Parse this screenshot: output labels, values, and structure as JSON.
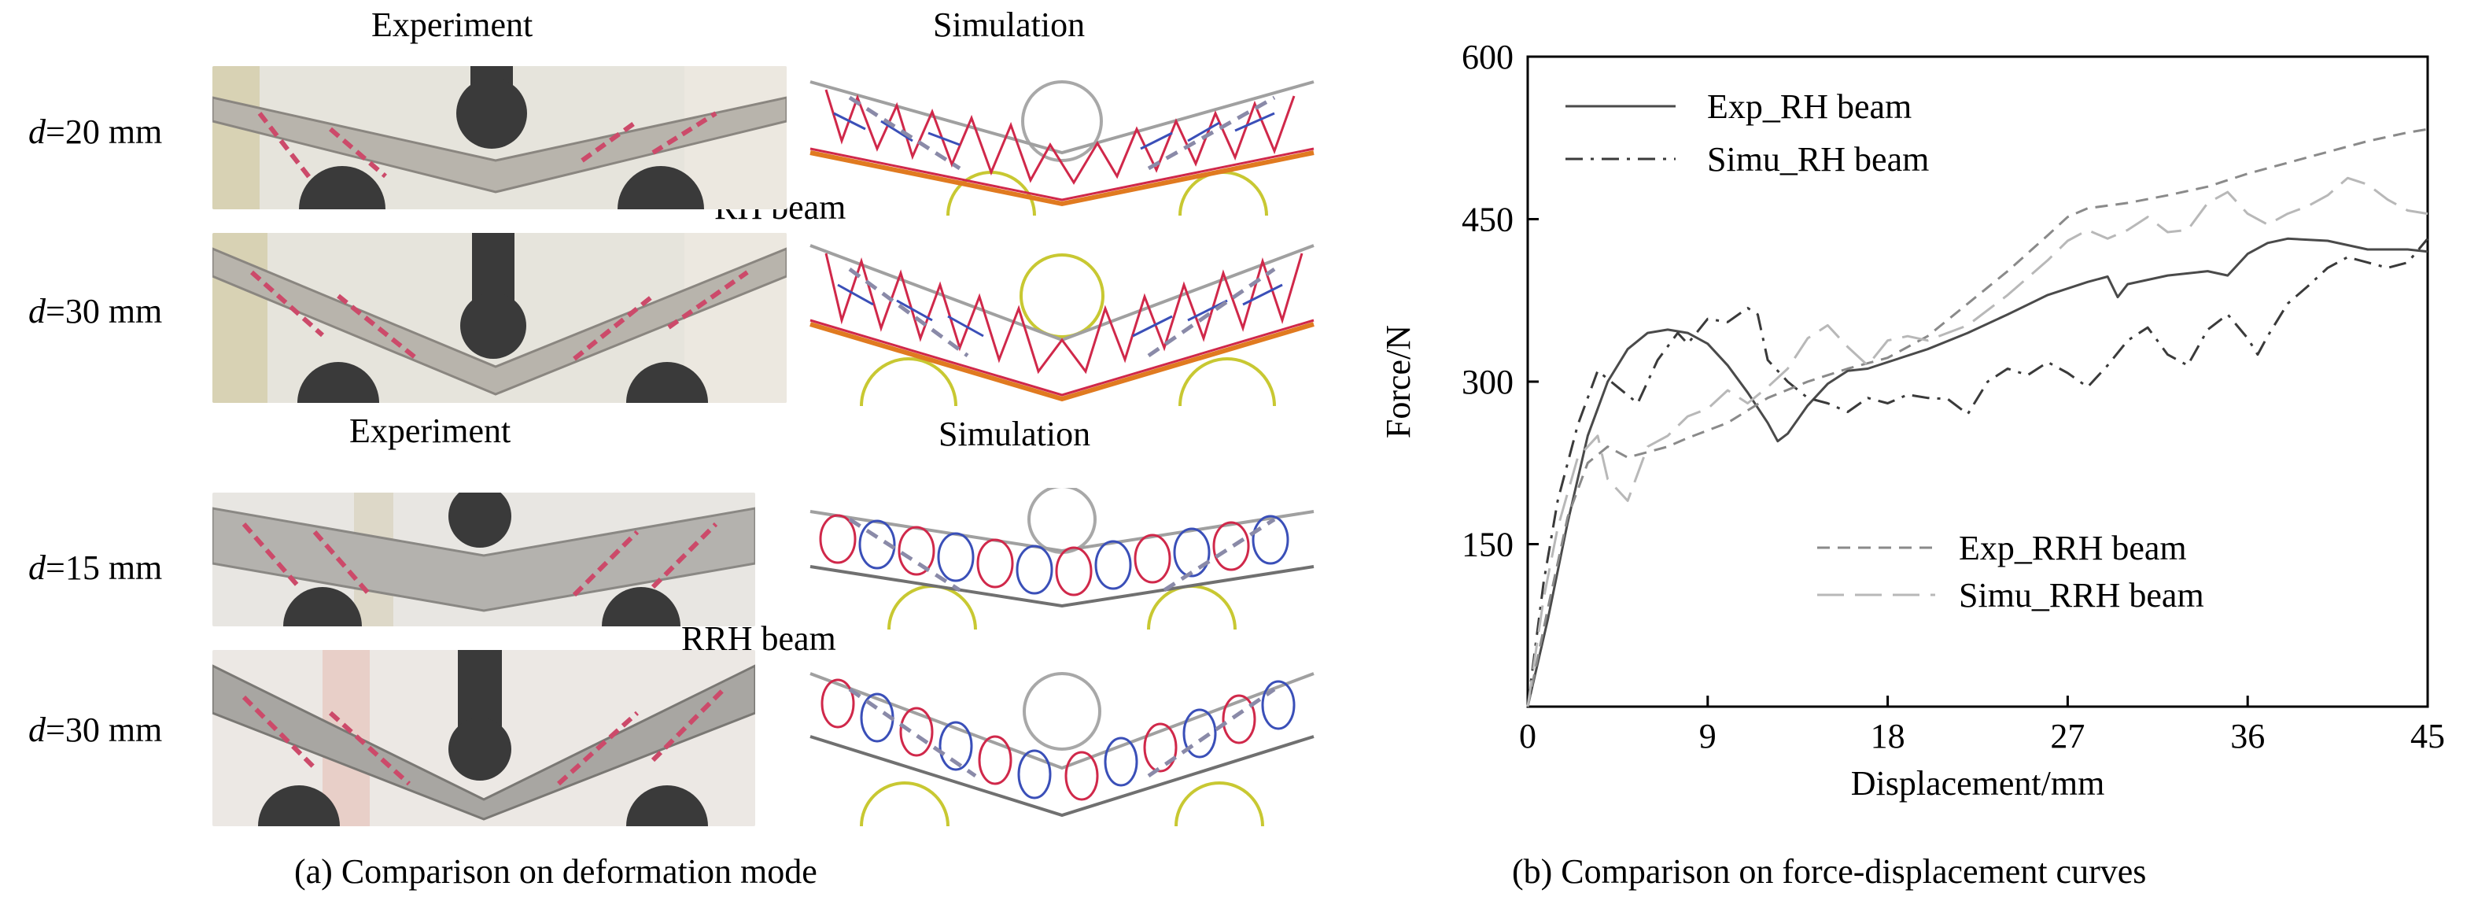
{
  "panel_a": {
    "experiment_label_1": "Experiment",
    "simulation_label_1": "Simulation",
    "experiment_label_2": "Experiment",
    "simulation_label_2": "Simulation",
    "rh_beam_label": "RH beam",
    "rrh_beam_label": "RRH beam",
    "rows": [
      {
        "d_symbol": "d",
        "d_value": "=20 mm"
      },
      {
        "d_symbol": "d",
        "d_value": "=30 mm"
      },
      {
        "d_symbol": "d",
        "d_value": "=15 mm"
      },
      {
        "d_symbol": "d",
        "d_value": "=30 mm"
      }
    ],
    "caption": "(a) Comparison on deformation mode"
  },
  "panel_b": {
    "caption": "(b) Comparison on force-displacement curves"
  },
  "colors": {
    "exp_rh": "#4a4a4a",
    "simu_rh": "#3a3a3a",
    "exp_rrh": "#8a8a8a",
    "simu_rrh": "#b8b8b8",
    "sim_red": "#d0284a",
    "sim_blue": "#3a4fb8",
    "sim_orange": "#e07a20",
    "sim_yellow": "#c8c832",
    "sim_grey": "#a0a0a0"
  },
  "chart_data": {
    "type": "line",
    "xlabel": "Displacement/mm",
    "ylabel": "Force/N",
    "xlim": [
      0,
      45
    ],
    "ylim": [
      0,
      600
    ],
    "xticks": [
      0,
      9,
      18,
      27,
      36,
      45
    ],
    "yticks": [
      150,
      300,
      450,
      600
    ],
    "grid": false,
    "legend_top": [
      "Exp_RH beam",
      "Simu_RH beam"
    ],
    "legend_bottom": [
      "Exp_RRH beam",
      "Simu_RRH beam"
    ],
    "series": [
      {
        "name": "Exp_RH beam",
        "style": "solid",
        "points": [
          [
            0,
            0
          ],
          [
            1,
            80
          ],
          [
            2,
            170
          ],
          [
            3,
            250
          ],
          [
            4,
            300
          ],
          [
            5,
            330
          ],
          [
            6,
            345
          ],
          [
            7,
            348
          ],
          [
            8,
            345
          ],
          [
            9,
            335
          ],
          [
            10,
            315
          ],
          [
            11,
            290
          ],
          [
            12,
            262
          ],
          [
            12.5,
            245
          ],
          [
            13,
            252
          ],
          [
            14,
            278
          ],
          [
            15,
            298
          ],
          [
            16,
            310
          ],
          [
            17,
            312
          ],
          [
            18,
            318
          ],
          [
            20,
            330
          ],
          [
            22,
            345
          ],
          [
            24,
            362
          ],
          [
            26,
            380
          ],
          [
            28,
            392
          ],
          [
            29,
            397
          ],
          [
            29.5,
            378
          ],
          [
            30,
            390
          ],
          [
            32,
            398
          ],
          [
            34,
            402
          ],
          [
            35,
            398
          ],
          [
            36,
            418
          ],
          [
            37,
            428
          ],
          [
            38,
            432
          ],
          [
            40,
            430
          ],
          [
            42,
            422
          ],
          [
            44,
            422
          ],
          [
            45,
            420
          ]
        ]
      },
      {
        "name": "Simu_RH beam",
        "style": "dashdot",
        "points": [
          [
            0,
            0
          ],
          [
            0.8,
            115
          ],
          [
            1.5,
            190
          ],
          [
            2.5,
            260
          ],
          [
            3.5,
            310
          ],
          [
            4.5,
            295
          ],
          [
            5.5,
            280
          ],
          [
            6.5,
            320
          ],
          [
            7.5,
            345
          ],
          [
            8,
            335
          ],
          [
            9,
            358
          ],
          [
            10,
            355
          ],
          [
            11,
            368
          ],
          [
            11.5,
            362
          ],
          [
            12,
            320
          ],
          [
            13,
            300
          ],
          [
            14,
            285
          ],
          [
            15,
            280
          ],
          [
            16,
            272
          ],
          [
            17,
            285
          ],
          [
            18,
            280
          ],
          [
            19,
            288
          ],
          [
            20,
            285
          ],
          [
            21,
            284
          ],
          [
            22,
            270
          ],
          [
            23,
            300
          ],
          [
            24,
            312
          ],
          [
            25,
            306
          ],
          [
            26,
            318
          ],
          [
            27,
            308
          ],
          [
            28,
            295
          ],
          [
            29,
            315
          ],
          [
            30,
            338
          ],
          [
            31,
            350
          ],
          [
            32,
            325
          ],
          [
            33,
            315
          ],
          [
            34,
            348
          ],
          [
            35,
            362
          ],
          [
            36,
            340
          ],
          [
            36.5,
            325
          ],
          [
            37,
            342
          ],
          [
            38,
            372
          ],
          [
            39,
            388
          ],
          [
            40,
            405
          ],
          [
            41,
            415
          ],
          [
            42,
            410
          ],
          [
            43,
            405
          ],
          [
            44,
            410
          ],
          [
            45,
            432
          ]
        ]
      },
      {
        "name": "Exp_RRH beam",
        "style": "dashed",
        "points": [
          [
            0,
            0
          ],
          [
            1,
            90
          ],
          [
            2,
            175
          ],
          [
            3,
            225
          ],
          [
            4,
            240
          ],
          [
            5,
            230
          ],
          [
            6,
            235
          ],
          [
            7,
            240
          ],
          [
            8,
            248
          ],
          [
            10,
            262
          ],
          [
            12,
            285
          ],
          [
            14,
            300
          ],
          [
            16,
            312
          ],
          [
            18,
            322
          ],
          [
            20,
            342
          ],
          [
            22,
            372
          ],
          [
            24,
            402
          ],
          [
            26,
            435
          ],
          [
            27,
            452
          ],
          [
            28,
            460
          ],
          [
            30,
            465
          ],
          [
            32,
            472
          ],
          [
            34,
            480
          ],
          [
            36,
            492
          ],
          [
            38,
            502
          ],
          [
            40,
            512
          ],
          [
            42,
            522
          ],
          [
            44,
            530
          ],
          [
            45,
            533
          ]
        ]
      },
      {
        "name": "Simu_RRH beam",
        "style": "longdash",
        "points": [
          [
            0,
            0
          ],
          [
            0.8,
            100
          ],
          [
            1.5,
            165
          ],
          [
            2.5,
            230
          ],
          [
            3.5,
            250
          ],
          [
            4,
            210
          ],
          [
            5,
            190
          ],
          [
            6,
            240
          ],
          [
            7,
            250
          ],
          [
            8,
            268
          ],
          [
            9,
            275
          ],
          [
            10,
            292
          ],
          [
            11,
            280
          ],
          [
            12,
            295
          ],
          [
            13,
            312
          ],
          [
            14,
            340
          ],
          [
            15,
            352
          ],
          [
            16,
            332
          ],
          [
            17,
            315
          ],
          [
            18,
            338
          ],
          [
            19,
            342
          ],
          [
            20,
            338
          ],
          [
            22,
            352
          ],
          [
            24,
            380
          ],
          [
            26,
            412
          ],
          [
            27,
            430
          ],
          [
            28,
            440
          ],
          [
            29,
            432
          ],
          [
            30,
            440
          ],
          [
            31,
            452
          ],
          [
            32,
            438
          ],
          [
            33,
            440
          ],
          [
            34,
            465
          ],
          [
            35,
            475
          ],
          [
            36,
            455
          ],
          [
            37,
            445
          ],
          [
            38,
            455
          ],
          [
            39,
            462
          ],
          [
            40,
            472
          ],
          [
            41,
            488
          ],
          [
            42,
            482
          ],
          [
            43,
            468
          ],
          [
            44,
            458
          ],
          [
            45,
            455
          ]
        ]
      }
    ]
  }
}
